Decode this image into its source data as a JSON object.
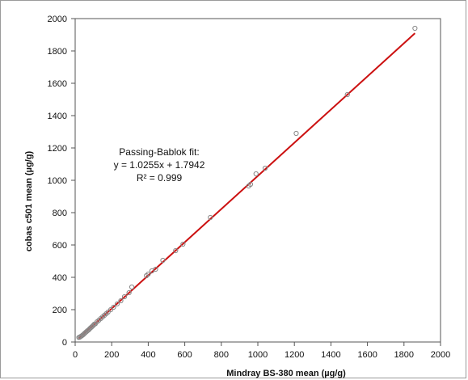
{
  "chart_data": {
    "type": "scatter",
    "xlabel": "Mindray BS-380 mean (µg/g)",
    "ylabel": "cobas c501 mean (µg/g)",
    "xlim": [
      0,
      2000
    ],
    "ylim": [
      0,
      2000
    ],
    "x_ticks": [
      "0",
      "200",
      "400",
      "600",
      "800",
      "1000",
      "1200",
      "1400",
      "1600",
      "1800",
      "2000"
    ],
    "y_ticks": [
      "0",
      "200",
      "400",
      "600",
      "800",
      "1000",
      "1200",
      "1400",
      "1600",
      "1800",
      "2000"
    ],
    "grid": false,
    "annotation": [
      "Passing-Bablok fit:",
      "y = 1.0255x + 1.7942",
      "R² = 0.999"
    ],
    "fit_line": {
      "slope": 1.0255,
      "intercept": 1.7942,
      "x_range": [
        20,
        1860
      ],
      "color": "#cc1111"
    },
    "marker_color": "#888888",
    "points": [
      {
        "x": 20,
        "y": 28
      },
      {
        "x": 25,
        "y": 30
      },
      {
        "x": 30,
        "y": 34
      },
      {
        "x": 35,
        "y": 37
      },
      {
        "x": 40,
        "y": 42
      },
      {
        "x": 45,
        "y": 46
      },
      {
        "x": 50,
        "y": 52
      },
      {
        "x": 55,
        "y": 57
      },
      {
        "x": 60,
        "y": 62
      },
      {
        "x": 65,
        "y": 67
      },
      {
        "x": 70,
        "y": 72
      },
      {
        "x": 75,
        "y": 76
      },
      {
        "x": 80,
        "y": 83
      },
      {
        "x": 85,
        "y": 88
      },
      {
        "x": 90,
        "y": 93
      },
      {
        "x": 95,
        "y": 98
      },
      {
        "x": 100,
        "y": 104
      },
      {
        "x": 105,
        "y": 110
      },
      {
        "x": 110,
        "y": 112
      },
      {
        "x": 120,
        "y": 125
      },
      {
        "x": 130,
        "y": 135
      },
      {
        "x": 140,
        "y": 145
      },
      {
        "x": 150,
        "y": 155
      },
      {
        "x": 160,
        "y": 165
      },
      {
        "x": 170,
        "y": 175
      },
      {
        "x": 180,
        "y": 185
      },
      {
        "x": 195,
        "y": 200
      },
      {
        "x": 210,
        "y": 215
      },
      {
        "x": 230,
        "y": 236
      },
      {
        "x": 250,
        "y": 255
      },
      {
        "x": 270,
        "y": 280
      },
      {
        "x": 295,
        "y": 305
      },
      {
        "x": 310,
        "y": 340
      },
      {
        "x": 390,
        "y": 410
      },
      {
        "x": 400,
        "y": 420
      },
      {
        "x": 420,
        "y": 440
      },
      {
        "x": 440,
        "y": 450
      },
      {
        "x": 480,
        "y": 505
      },
      {
        "x": 550,
        "y": 565
      },
      {
        "x": 590,
        "y": 605
      },
      {
        "x": 740,
        "y": 770
      },
      {
        "x": 950,
        "y": 965
      },
      {
        "x": 960,
        "y": 975
      },
      {
        "x": 990,
        "y": 1040
      },
      {
        "x": 1040,
        "y": 1075
      },
      {
        "x": 1210,
        "y": 1290
      },
      {
        "x": 1490,
        "y": 1530
      },
      {
        "x": 1860,
        "y": 1940
      }
    ]
  }
}
